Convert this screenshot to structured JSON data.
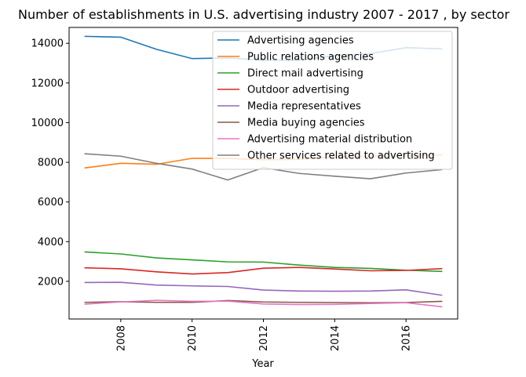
{
  "chart_data": {
    "type": "line",
    "title": "Number of establishments in U.S. advertising industry 2007 - 2017 , by sector",
    "xlabel": "Year",
    "ylabel": "",
    "x": [
      2007,
      2008,
      2009,
      2010,
      2011,
      2012,
      2013,
      2014,
      2015,
      2016,
      2017
    ],
    "xlim": [
      2006.55,
      2017.45
    ],
    "ylim": [
      100,
      14800
    ],
    "xticks": [
      2008,
      2010,
      2012,
      2014,
      2016
    ],
    "yticks": [
      2000,
      4000,
      6000,
      8000,
      10000,
      12000,
      14000
    ],
    "grid": false,
    "legend_position": "upper right",
    "series": [
      {
        "name": "Advertising agencies",
        "color": "#1f77b4",
        "values": [
          14350,
          14310,
          13700,
          13230,
          13260,
          13150,
          13150,
          13380,
          13480,
          13780,
          13720
        ]
      },
      {
        "name": "Public relations agencies",
        "color": "#ff7f0e",
        "values": [
          7720,
          7950,
          7900,
          8200,
          8200,
          8130,
          8150,
          8280,
          8300,
          8330,
          8380
        ]
      },
      {
        "name": "Direct mail advertising",
        "color": "#2ca02c",
        "values": [
          3480,
          3380,
          3180,
          3080,
          2980,
          2970,
          2820,
          2700,
          2650,
          2560,
          2500
        ]
      },
      {
        "name": "Outdoor advertising",
        "color": "#d62728",
        "values": [
          2680,
          2630,
          2480,
          2370,
          2440,
          2660,
          2700,
          2620,
          2530,
          2550,
          2640
        ]
      },
      {
        "name": "Media representatives",
        "color": "#9467bd",
        "values": [
          1940,
          1950,
          1810,
          1770,
          1740,
          1560,
          1510,
          1500,
          1510,
          1570,
          1300
        ]
      },
      {
        "name": "Media buying agencies",
        "color": "#8c564b",
        "values": [
          940,
          970,
          940,
          940,
          1030,
          960,
          940,
          930,
          920,
          930,
          990
        ]
      },
      {
        "name": "Advertising material distribution",
        "color": "#e377c2",
        "values": [
          850,
          960,
          1040,
          990,
          1000,
          860,
          830,
          840,
          880,
          920,
          720
        ]
      },
      {
        "name": "Other services related to advertising",
        "color": "#7f7f7f",
        "values": [
          8430,
          8310,
          7950,
          7660,
          7110,
          7730,
          7440,
          7300,
          7170,
          7460,
          7630
        ]
      }
    ]
  }
}
